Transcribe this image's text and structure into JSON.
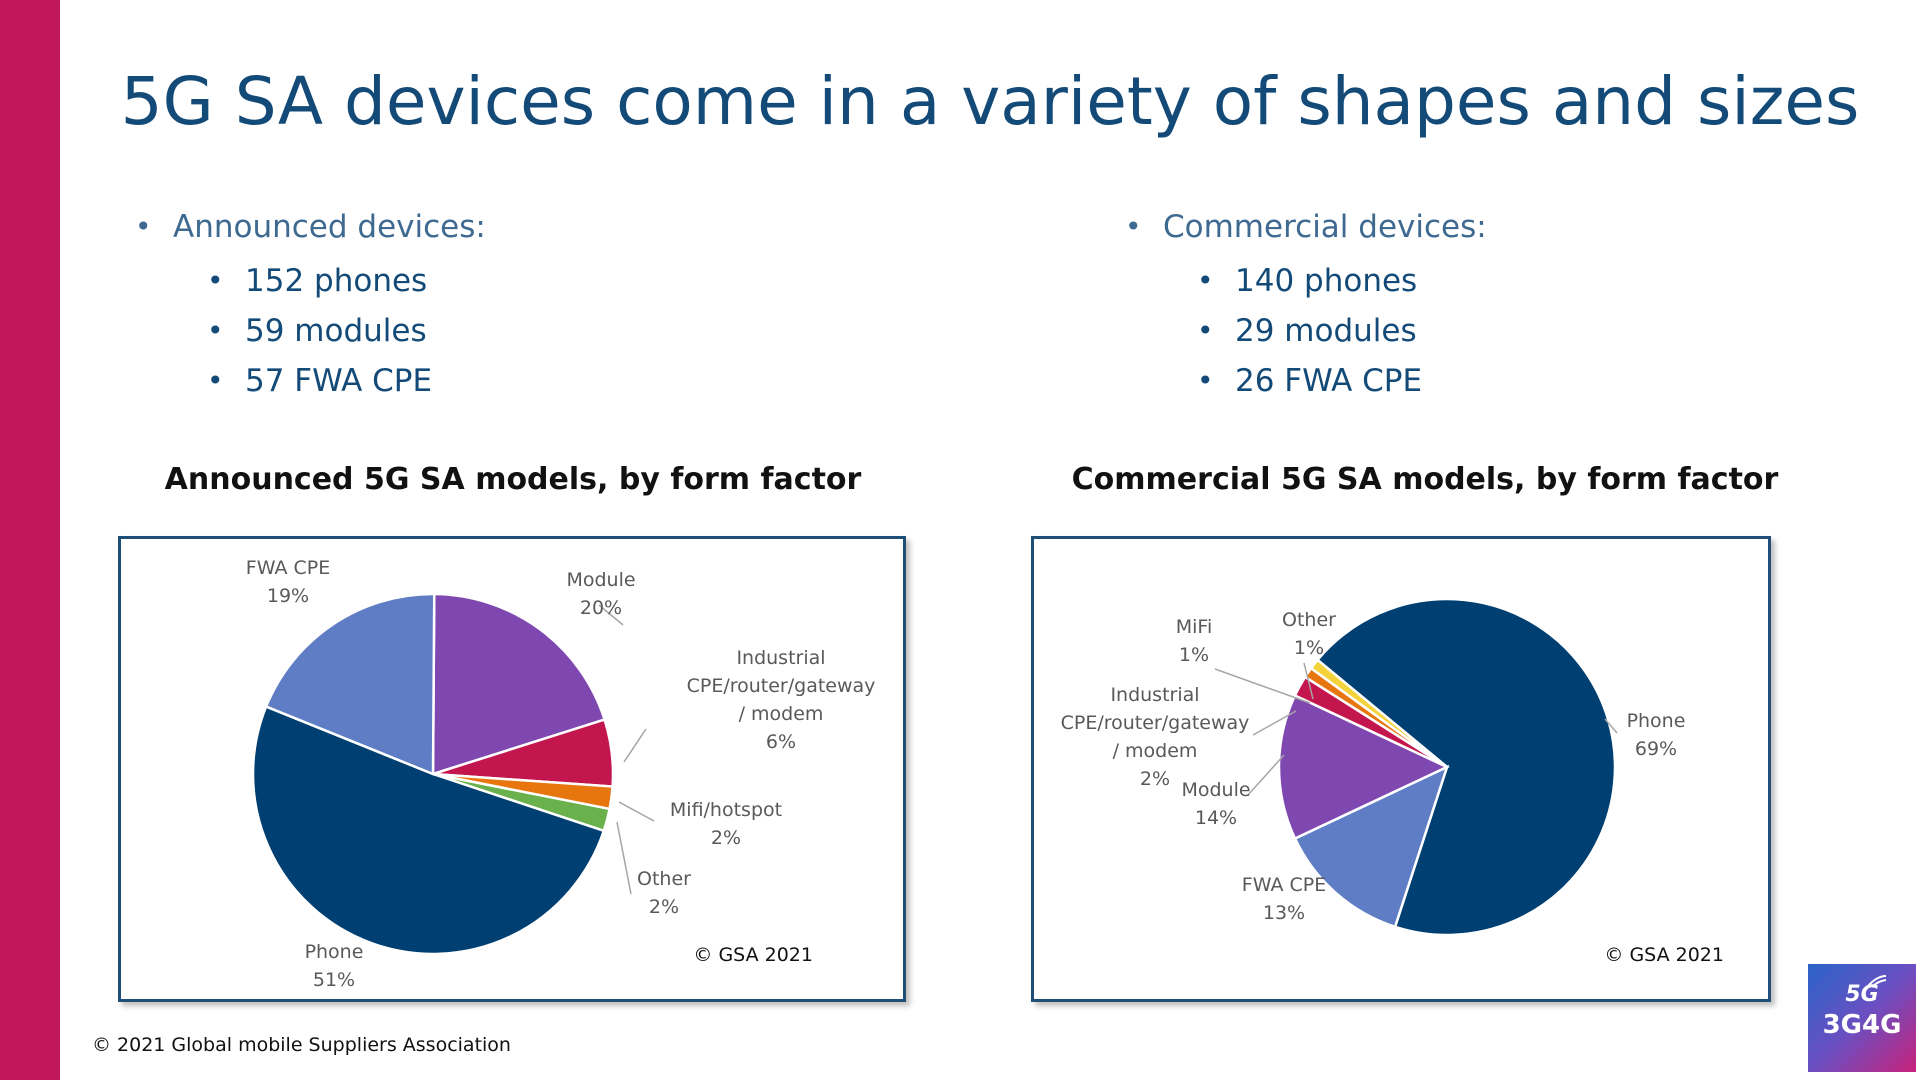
{
  "slide": {
    "title": "5G SA devices come in a variety of shapes and sizes",
    "accent_color": "#c0185b",
    "footer": "© 2021 Global mobile Suppliers Association",
    "logo": {
      "line1": "5G",
      "line2": "3G4G"
    }
  },
  "announced": {
    "heading": "Announced devices:",
    "items": [
      "152 phones",
      "59 modules",
      "57 FWA CPE"
    ]
  },
  "commercial": {
    "heading": "Commercial devices:",
    "items": [
      "140 phones",
      "29 modules",
      "26 FWA CPE"
    ]
  },
  "chart_data": [
    {
      "type": "pie",
      "title": "Announced 5G SA models, by form factor",
      "credit": "© GSA 2021",
      "slices": [
        {
          "label": "Module",
          "value_label": "20%",
          "value": 20,
          "color": "#7f47b0"
        },
        {
          "label": "Industrial CPE/router/gateway/ modem",
          "value_label": "6%",
          "value": 6,
          "color": "#c4164e"
        },
        {
          "label": "Mifi/hotspot",
          "value_label": "2%",
          "value": 2,
          "color": "#e8760f"
        },
        {
          "label": "Other",
          "value_label": "2%",
          "value": 2,
          "color": "#6ab04c"
        },
        {
          "label": "Phone",
          "value_label": "51%",
          "value": 51,
          "color": "#003f72"
        },
        {
          "label": "FWA CPE",
          "value_label": "19%",
          "value": 19,
          "color": "#5f7dc5"
        }
      ]
    },
    {
      "type": "pie",
      "title": "Commercial 5G SA models, by form factor",
      "credit": "© GSA 2021",
      "slices": [
        {
          "label": "Phone",
          "value_label": "69%",
          "value": 69,
          "color": "#003f72"
        },
        {
          "label": "FWA CPE",
          "value_label": "13%",
          "value": 13,
          "color": "#5f7dc5"
        },
        {
          "label": "Module",
          "value_label": "14%",
          "value": 14,
          "color": "#7f47b0"
        },
        {
          "label": "Industrial CPE/router/gateway / modem",
          "value_label": "2%",
          "value": 2,
          "color": "#c4164e"
        },
        {
          "label": "MiFi",
          "value_label": "1%",
          "value": 1,
          "color": "#e8760f"
        },
        {
          "label": "Other",
          "value_label": "1%",
          "value": 1,
          "color": "#f3d23a"
        }
      ]
    }
  ]
}
